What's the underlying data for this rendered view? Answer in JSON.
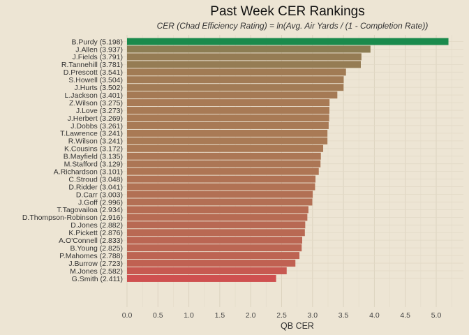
{
  "chart_data": {
    "type": "bar",
    "orientation": "horizontal",
    "title": "Past Week CER Rankings",
    "subtitle": "CER (Chad Efficiency Rating) = ln(Avg. Air Yards / (1 - Completion Rate))",
    "xlabel": "QB CER",
    "ylabel": "",
    "xlim": [
      0,
      5.2
    ],
    "xticks": [
      "0.0",
      "0.5",
      "1.0",
      "1.5",
      "2.0",
      "2.5",
      "3.0",
      "3.5",
      "4.0",
      "4.5",
      "5.0"
    ],
    "grid": true,
    "color_low": "#cf5050",
    "color_mid": "#a97a55",
    "color_high": "#1a8a4c",
    "categories": [
      "B.Purdy (5.198)",
      "J.Allen (3.937)",
      "J.Fields (3.791)",
      "R.Tannehill (3.781)",
      "D.Prescott (3.541)",
      "S.Howell (3.504)",
      "J.Hurts (3.502)",
      "L.Jackson (3.401)",
      "Z.Wilson (3.275)",
      "J.Love (3.273)",
      "J.Herbert (3.269)",
      "J.Dobbs (3.261)",
      "T.Lawrence (3.241)",
      "R.Wilson (3.241)",
      "K.Cousins (3.172)",
      "B.Mayfield (3.135)",
      "M.Stafford (3.129)",
      "A.Richardson (3.101)",
      "C.Stroud (3.048)",
      "D.Ridder (3.041)",
      "D.Carr (3.003)",
      "J.Goff (2.996)",
      "T.Tagovailoa (2.934)",
      "D.Thompson-Robinson (2.916)",
      "D.Jones (2.882)",
      "K.Pickett (2.876)",
      "A.O'Connell (2.833)",
      "B.Young (2.825)",
      "P.Mahomes (2.788)",
      "J.Burrow (2.723)",
      "M.Jones (2.582)",
      "G.Smith (2.411)"
    ],
    "values": [
      5.198,
      3.937,
      3.791,
      3.781,
      3.541,
      3.504,
      3.502,
      3.401,
      3.275,
      3.273,
      3.269,
      3.261,
      3.241,
      3.241,
      3.172,
      3.135,
      3.129,
      3.101,
      3.048,
      3.041,
      3.003,
      2.996,
      2.934,
      2.916,
      2.882,
      2.876,
      2.833,
      2.825,
      2.788,
      2.723,
      2.582,
      2.411
    ]
  }
}
